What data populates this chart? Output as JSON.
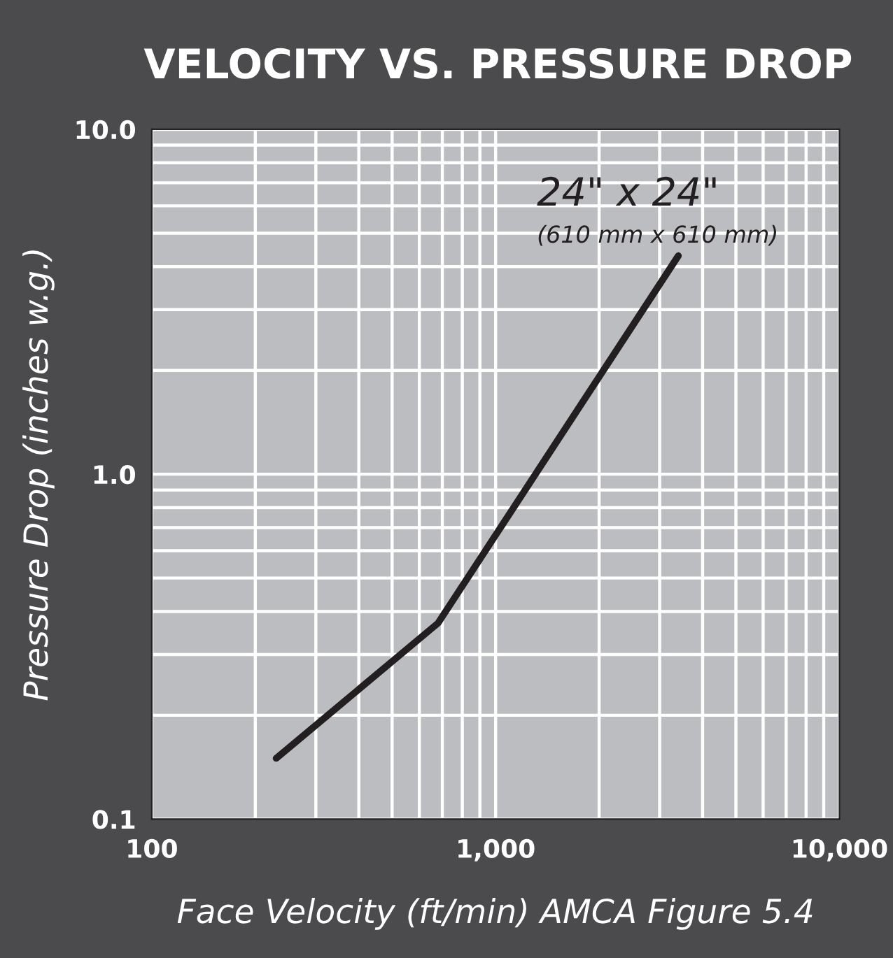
{
  "chart_data": {
    "type": "line",
    "title": "VELOCITY VS. PRESSURE DROP",
    "xlabel": "Face Velocity (ft/min) AMCA Figure 5.4",
    "ylabel": "Pressure Drop (inches w.g.)",
    "log": "xy",
    "xlim": [
      100,
      10000
    ],
    "ylim": [
      0.1,
      10
    ],
    "xticks": [
      100,
      {
        "value": 1000,
        "label": "1,000"
      },
      {
        "value": 10000,
        "label": "10,000"
      }
    ],
    "yticks": [
      0.1,
      {
        "value": 1,
        "label": "1.0"
      },
      {
        "value": 10,
        "label": "10.0"
      }
    ],
    "grid": true,
    "marker": "none",
    "line_style": "solid",
    "annotations": [
      "24\" x 24\"",
      "(610 mm x 610 mm)"
    ],
    "series": [
      {
        "color": "#231f20",
        "x": [
          230,
          680,
          3400
        ],
        "values": [
          0.15,
          0.37,
          4.3
        ]
      }
    ]
  }
}
